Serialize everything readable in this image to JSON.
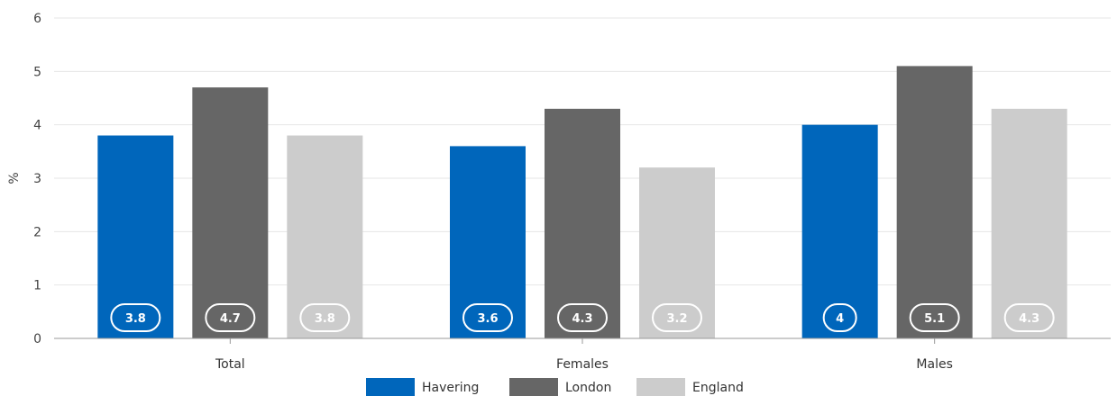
{
  "chart_data": {
    "type": "bar",
    "title": "",
    "xlabel": "",
    "ylabel": "%",
    "ylim": [
      0,
      6
    ],
    "yticks": [
      "0",
      "1",
      "2",
      "3",
      "4",
      "5",
      "6"
    ],
    "grid": true,
    "legend_position": "bottom-center",
    "categories": [
      "Total",
      "Females",
      "Males"
    ],
    "series": [
      {
        "name": "Havering",
        "color": "#0066bb",
        "values": [
          3.8,
          3.6,
          4
        ],
        "labels": [
          "3.8",
          "3.6",
          "4"
        ]
      },
      {
        "name": "London",
        "color": "#666666",
        "values": [
          4.7,
          4.3,
          5.1
        ],
        "labels": [
          "4.7",
          "4.3",
          "5.1"
        ]
      },
      {
        "name": "England",
        "color": "#cccccc",
        "values": [
          3.8,
          3.2,
          4.3
        ],
        "labels": [
          "3.8",
          "3.2",
          "4.3"
        ]
      }
    ]
  }
}
